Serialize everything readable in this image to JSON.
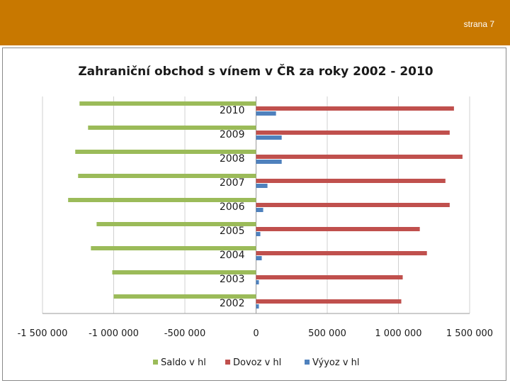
{
  "header": {
    "page_label": "strana 7"
  },
  "chart_data": {
    "type": "bar",
    "orientation": "horizontal",
    "title": "Zahraniční obchod s vínem v ČR za roky 2002 - 2010",
    "categories": [
      "2002",
      "2003",
      "2004",
      "2005",
      "2006",
      "2007",
      "2008",
      "2009",
      "2010"
    ],
    "series": [
      {
        "name": "Saldo v hl",
        "color": "#9bbb59",
        "values": [
          -1000000,
          -1010000,
          -1160000,
          -1120000,
          -1320000,
          -1250000,
          -1270000,
          -1180000,
          -1240000
        ]
      },
      {
        "name": "Dovoz v  hl",
        "color": "#c0504d",
        "values": [
          1020000,
          1030000,
          1200000,
          1150000,
          1360000,
          1330000,
          1450000,
          1360000,
          1390000
        ]
      },
      {
        "name": "Výyoz v hl",
        "color": "#4f81bd",
        "values": [
          20000,
          20000,
          40000,
          30000,
          50000,
          80000,
          180000,
          180000,
          140000
        ]
      }
    ],
    "x_ticks": [
      "-1 500 000",
      "-1 000 000",
      "-500 000",
      "0",
      "500 000",
      "1 000 000",
      "1 500 000"
    ],
    "xlim": [
      -1500000,
      1500000
    ],
    "grid": true,
    "legend_position": "bottom"
  }
}
